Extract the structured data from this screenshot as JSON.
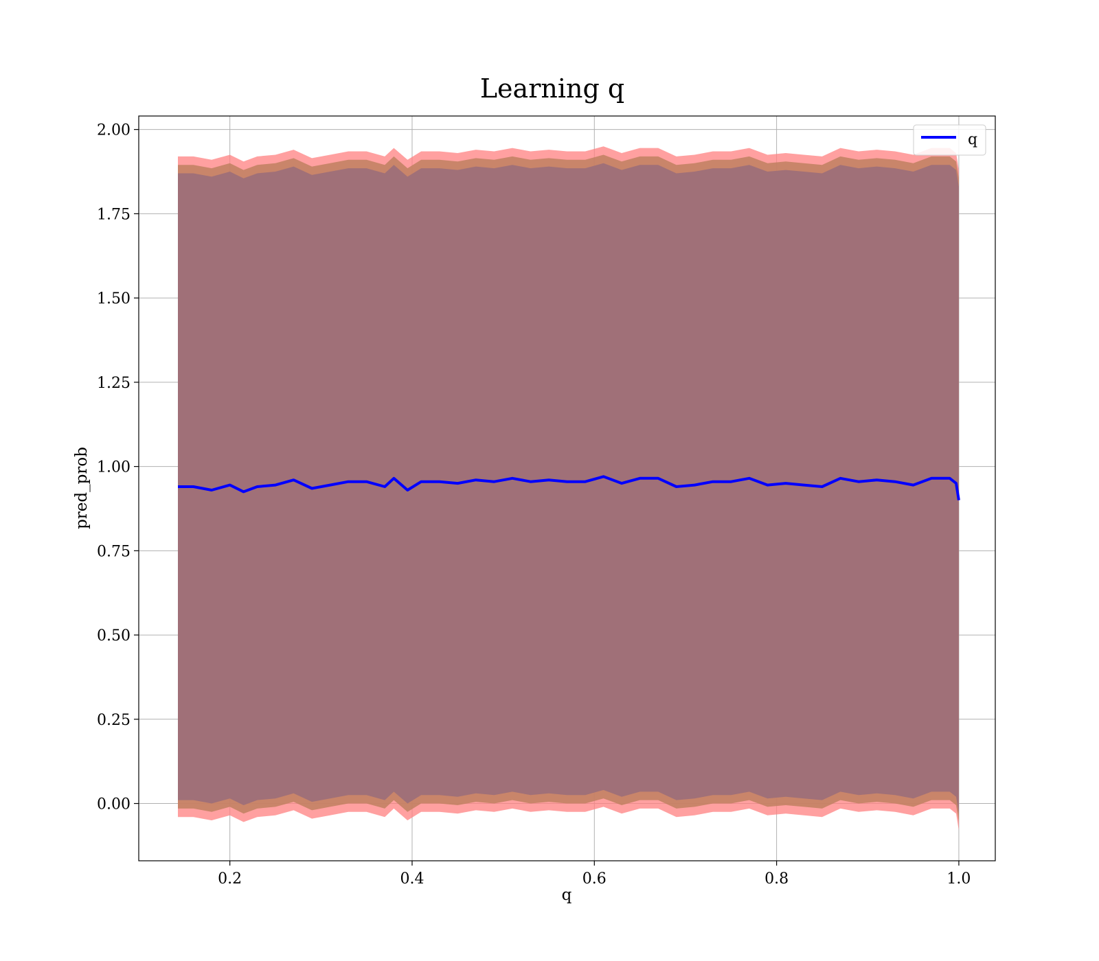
{
  "chart_data": {
    "type": "line",
    "title": "Learning q",
    "xlabel": "q",
    "ylabel": "pred_prob",
    "xlim": [
      0.1,
      1.04
    ],
    "ylim": [
      -0.17,
      2.04
    ],
    "xticks": [
      0.2,
      0.4,
      0.6,
      0.8,
      1.0
    ],
    "xtick_labels": [
      "0.2",
      "0.4",
      "0.6",
      "0.8",
      "1.0"
    ],
    "yticks": [
      0.0,
      0.25,
      0.5,
      0.75,
      1.0,
      1.25,
      1.5,
      1.75,
      2.0
    ],
    "ytick_labels": [
      "0.00",
      "0.25",
      "0.50",
      "0.75",
      "1.00",
      "1.25",
      "1.50",
      "1.75",
      "2.00"
    ],
    "grid": true,
    "legend": {
      "position": "top-right",
      "entries": [
        "q"
      ]
    },
    "colors": {
      "line": "#0000ff",
      "outer_band": "#ff8080",
      "inner_band": "#a07078",
      "mid_band": "#c08060",
      "grid": "#b0b0b0"
    },
    "series": [
      {
        "name": "q",
        "x": [
          0.143,
          0.16,
          0.18,
          0.2,
          0.215,
          0.23,
          0.25,
          0.27,
          0.29,
          0.31,
          0.33,
          0.35,
          0.37,
          0.38,
          0.395,
          0.41,
          0.43,
          0.45,
          0.47,
          0.49,
          0.51,
          0.53,
          0.55,
          0.57,
          0.59,
          0.61,
          0.63,
          0.65,
          0.67,
          0.69,
          0.71,
          0.73,
          0.75,
          0.77,
          0.79,
          0.81,
          0.83,
          0.85,
          0.87,
          0.89,
          0.91,
          0.93,
          0.95,
          0.97,
          0.99,
          0.997,
          1.0
        ],
        "y": [
          0.94,
          0.94,
          0.93,
          0.945,
          0.925,
          0.94,
          0.945,
          0.96,
          0.935,
          0.945,
          0.955,
          0.955,
          0.94,
          0.965,
          0.93,
          0.955,
          0.955,
          0.95,
          0.96,
          0.955,
          0.965,
          0.955,
          0.96,
          0.955,
          0.955,
          0.97,
          0.95,
          0.965,
          0.965,
          0.94,
          0.945,
          0.955,
          0.955,
          0.965,
          0.945,
          0.95,
          0.945,
          0.94,
          0.965,
          0.955,
          0.96,
          0.955,
          0.945,
          0.965,
          0.965,
          0.95,
          0.9
        ],
        "band_outer": 0.98,
        "band_inner": 0.93
      }
    ]
  }
}
